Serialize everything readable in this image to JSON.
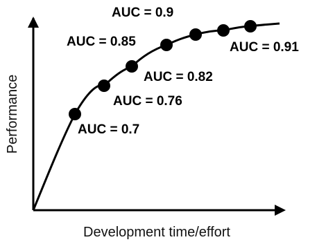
{
  "chart_data": {
    "type": "line",
    "title": "",
    "xlabel": "Development time/effort",
    "ylabel": "Performance",
    "axes_style": "arrows-no-ticks",
    "grid": false,
    "legend": "none",
    "curve": {
      "shape": "concave saturating",
      "color": "#000000"
    },
    "points": [
      {
        "label": "AUC = 0.7",
        "value": 0.7
      },
      {
        "label": "AUC = 0.76",
        "value": 0.76
      },
      {
        "label": "AUC = 0.82",
        "value": 0.82
      },
      {
        "label": "AUC = 0.85",
        "value": 0.85
      },
      {
        "label": "AUC = 0.9",
        "value": 0.9
      },
      {
        "label": "AUC = 0.91",
        "value": 0.91
      }
    ]
  }
}
